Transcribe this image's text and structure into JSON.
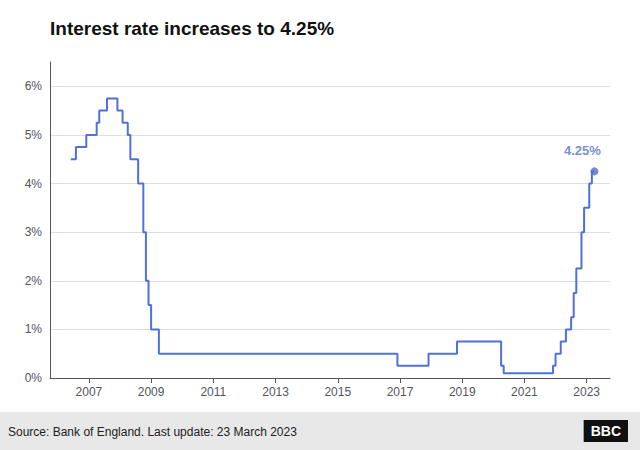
{
  "chart_data": {
    "type": "line",
    "line_style": "step",
    "title": "Interest rate increases to 4.25%",
    "source": "Source: Bank of England. Last update: 23 March 2023",
    "credit": "BBC",
    "x": [
      2006.417,
      2006.583,
      2006.917,
      2007.25,
      2007.333,
      2007.583,
      2007.917,
      2008.083,
      2008.25,
      2008.333,
      2008.583,
      2008.75,
      2008.833,
      2008.917,
      2009.0,
      2009.25,
      2016.75,
      2016.917,
      2017.833,
      2017.917,
      2018.75,
      2018.833,
      2019.583,
      2020.083,
      2020.25,
      2020.333,
      2021.833,
      2021.917,
      2022.0,
      2022.167,
      2022.333,
      2022.5,
      2022.583,
      2022.667,
      2022.75,
      2022.833,
      2022.917,
      2023.0,
      2023.083,
      2023.167,
      2023.25
    ],
    "values": [
      4.5,
      4.75,
      5.0,
      5.25,
      5.5,
      5.75,
      5.5,
      5.25,
      5.0,
      4.5,
      4.0,
      3.0,
      2.0,
      1.5,
      1.0,
      0.5,
      0.5,
      0.25,
      0.25,
      0.5,
      0.5,
      0.75,
      0.75,
      0.75,
      0.25,
      0.1,
      0.1,
      0.25,
      0.5,
      0.75,
      1.0,
      1.25,
      1.75,
      2.25,
      2.25,
      3.0,
      3.5,
      3.5,
      4.0,
      4.25,
      4.25
    ],
    "annotations": [
      {
        "x": 2023.25,
        "y": 4.25,
        "text": "4.25%"
      }
    ],
    "xlim": [
      2005.75,
      2023.75
    ],
    "xticks": [
      2007,
      2009,
      2011,
      2013,
      2015,
      2017,
      2019,
      2021,
      2023
    ],
    "ylim": [
      0,
      6.5
    ],
    "yticks": [
      {
        "value": 0,
        "label": "0%"
      },
      {
        "value": 1,
        "label": "1%"
      },
      {
        "value": 2,
        "label": "2%"
      },
      {
        "value": 3,
        "label": "3%"
      },
      {
        "value": 4,
        "label": "4%"
      },
      {
        "value": 5,
        "label": "5%"
      },
      {
        "value": 6,
        "label": "6%"
      }
    ],
    "grid": true
  }
}
